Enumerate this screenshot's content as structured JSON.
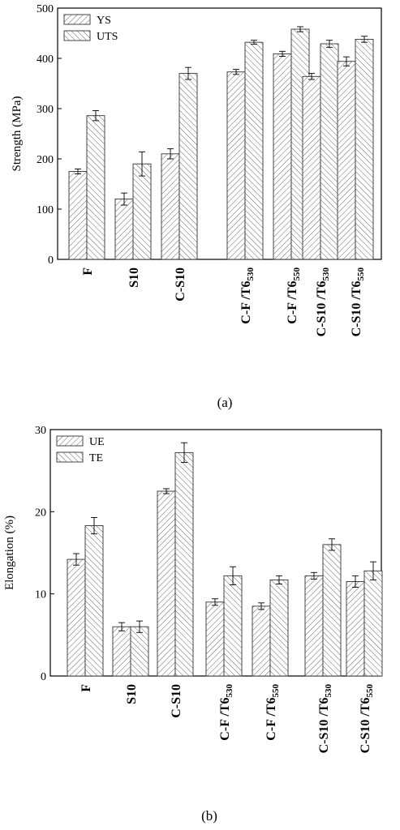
{
  "captions": [
    "(a)",
    "(b)"
  ],
  "chart_data": [
    {
      "type": "bar",
      "title": "",
      "xlabel": "",
      "ylabel": "Strength (MPa)",
      "ylim": [
        0,
        500
      ],
      "yticks": [
        0,
        100,
        200,
        300,
        400,
        500
      ],
      "grid": false,
      "legend": {
        "placement": "top-left"
      },
      "categories": [
        {
          "main": "F",
          "sub": ""
        },
        {
          "main": "S10",
          "sub": ""
        },
        {
          "main": "C-S10",
          "sub": ""
        },
        {
          "main": "C-F /T6",
          "sub": "530"
        },
        {
          "main": "C-F /T6",
          "sub": "550"
        },
        {
          "main": "C-S10 /T6",
          "sub": "530"
        },
        {
          "main": "C-S10 /T6",
          "sub": "550"
        }
      ],
      "series": [
        {
          "name": "YS",
          "values": [
            175,
            120,
            210,
            373,
            409,
            364,
            394
          ],
          "errors": [
            5,
            12,
            10,
            5,
            5,
            6,
            9
          ]
        },
        {
          "name": "UTS",
          "values": [
            286,
            190,
            370,
            432,
            458,
            429,
            438
          ],
          "errors": [
            10,
            24,
            12,
            4,
            5,
            7,
            6
          ]
        }
      ]
    },
    {
      "type": "bar",
      "title": "",
      "xlabel": "",
      "ylabel": "Elongation (%)",
      "ylim": [
        0,
        30
      ],
      "yticks": [
        0,
        10,
        20,
        30
      ],
      "grid": false,
      "legend": {
        "placement": "top-left"
      },
      "categories": [
        {
          "main": "F",
          "sub": ""
        },
        {
          "main": "S10",
          "sub": ""
        },
        {
          "main": "C-S10",
          "sub": ""
        },
        {
          "main": "C-F /T6",
          "sub": "530"
        },
        {
          "main": "C-F /T6",
          "sub": "550"
        },
        {
          "main": "C-S10 /T6",
          "sub": "530"
        },
        {
          "main": "C-S10 /T6",
          "sub": "550"
        }
      ],
      "series": [
        {
          "name": "UE",
          "values": [
            14.2,
            6.0,
            22.5,
            9.0,
            8.5,
            12.2,
            11.5
          ],
          "errors": [
            0.7,
            0.5,
            0.3,
            0.4,
            0.4,
            0.4,
            0.7
          ]
        },
        {
          "name": "TE",
          "values": [
            18.3,
            6.0,
            27.2,
            12.2,
            11.7,
            16.0,
            12.8
          ],
          "errors": [
            1.0,
            0.7,
            1.2,
            1.1,
            0.5,
            0.7,
            1.1
          ]
        }
      ]
    }
  ]
}
